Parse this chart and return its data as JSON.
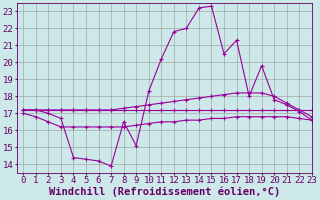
{
  "xlabel": "Windchill (Refroidissement éolien,°C)",
  "background_color": "#cce8e8",
  "grid_color": "#999999",
  "line_color": "#990099",
  "xlim": [
    -0.5,
    23
  ],
  "ylim": [
    13.5,
    23.5
  ],
  "xticks": [
    0,
    1,
    2,
    3,
    4,
    5,
    6,
    7,
    8,
    9,
    10,
    11,
    12,
    13,
    14,
    15,
    16,
    17,
    18,
    19,
    20,
    21,
    22,
    23
  ],
  "yticks": [
    14,
    15,
    16,
    17,
    18,
    19,
    20,
    21,
    22,
    23
  ],
  "series": {
    "line1": {
      "x": [
        0,
        1,
        2,
        3,
        4,
        5,
        6,
        7,
        8,
        9,
        10,
        11,
        12,
        13,
        14,
        15,
        16,
        17,
        18,
        19,
        20,
        21,
        22,
        23
      ],
      "y": [
        17.2,
        17.2,
        17.2,
        17.2,
        17.2,
        17.2,
        17.2,
        17.2,
        17.2,
        17.2,
        17.2,
        17.2,
        17.2,
        17.2,
        17.2,
        17.2,
        17.2,
        17.2,
        17.2,
        17.2,
        17.2,
        17.2,
        17.2,
        17.2
      ]
    },
    "line2": {
      "x": [
        0,
        1,
        2,
        3,
        4,
        5,
        6,
        7,
        8,
        9,
        10,
        11,
        12,
        13,
        14,
        15,
        16,
        17,
        18,
        19,
        20,
        21,
        22,
        23
      ],
      "y": [
        17.2,
        17.2,
        17.2,
        17.2,
        17.2,
        17.2,
        17.2,
        17.2,
        17.3,
        17.4,
        17.5,
        17.6,
        17.7,
        17.8,
        17.9,
        18.0,
        18.1,
        18.2,
        18.2,
        18.2,
        18.0,
        17.6,
        17.2,
        16.8
      ]
    },
    "line3": {
      "x": [
        0,
        1,
        2,
        3,
        4,
        5,
        6,
        7,
        8,
        9,
        10,
        11,
        12,
        13,
        14,
        15,
        16,
        17,
        18,
        19,
        20,
        21,
        22,
        23
      ],
      "y": [
        17.0,
        16.8,
        16.5,
        16.2,
        16.2,
        16.2,
        16.2,
        16.2,
        16.2,
        16.3,
        16.4,
        16.5,
        16.5,
        16.6,
        16.6,
        16.7,
        16.7,
        16.8,
        16.8,
        16.8,
        16.8,
        16.8,
        16.7,
        16.6
      ]
    },
    "line4": {
      "x": [
        0,
        1,
        2,
        3,
        4,
        5,
        6,
        7,
        8,
        9,
        10,
        11,
        12,
        13,
        14,
        15,
        16,
        17,
        18,
        19,
        20,
        21,
        22,
        23
      ],
      "y": [
        17.2,
        17.2,
        17.0,
        16.7,
        14.4,
        14.3,
        14.2,
        13.9,
        16.5,
        15.1,
        18.3,
        20.2,
        21.8,
        22.0,
        23.2,
        23.3,
        20.5,
        21.3,
        18.0,
        19.8,
        17.8,
        17.5,
        17.1,
        16.6
      ]
    }
  },
  "font_color": "#660066",
  "tick_color": "#660066",
  "axis_color": "#660066",
  "font_size": 6.5,
  "xlabel_fontsize": 7.5
}
